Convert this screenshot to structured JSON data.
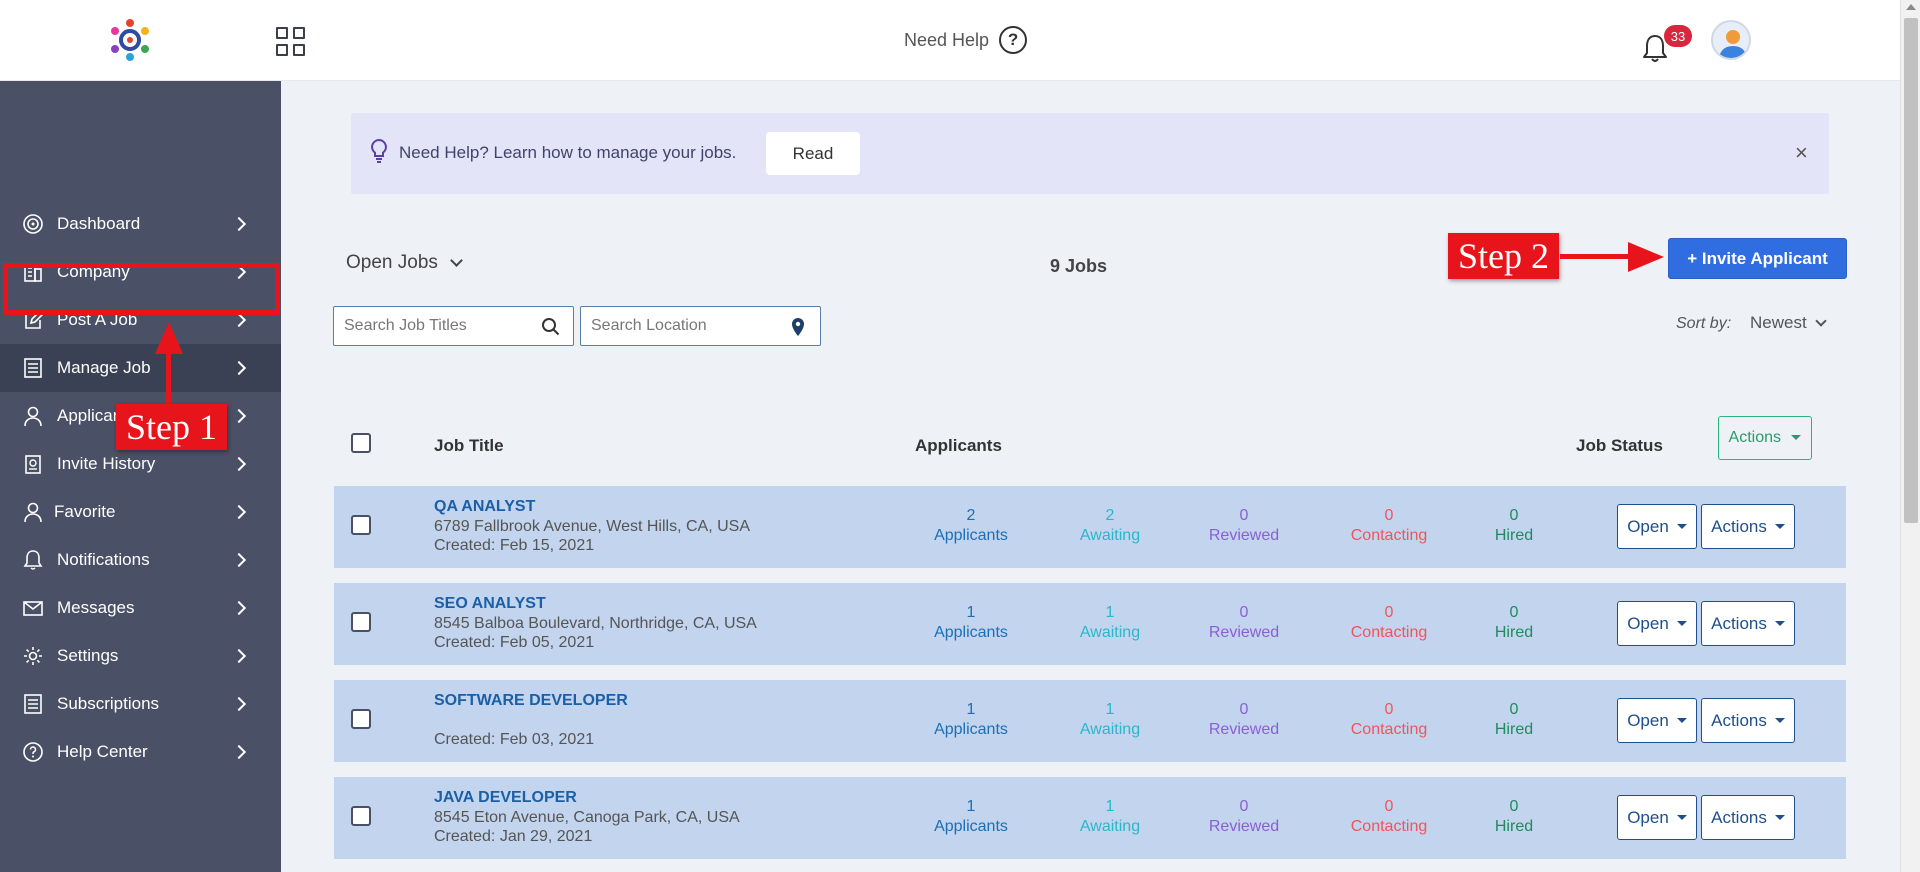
{
  "header": {
    "help_label": "Need Help",
    "help_icon": "question-circle-icon",
    "notification_count": "33"
  },
  "sidebar": {
    "items": [
      {
        "label": "Dashboard",
        "icon": "target-icon"
      },
      {
        "label": "Company",
        "icon": "building-icon"
      },
      {
        "label": "Post A Job",
        "icon": "edit-icon"
      },
      {
        "label": "Manage Job",
        "icon": "list-icon"
      },
      {
        "label": "Applicants",
        "icon": "user-icon"
      },
      {
        "label": "Invite History",
        "icon": "clipboard-icon"
      },
      {
        "label": "Favorite",
        "icon": "user-icon"
      },
      {
        "label": "Notifications",
        "icon": "bell-icon"
      },
      {
        "label": "Messages",
        "icon": "mail-icon"
      },
      {
        "label": "Settings",
        "icon": "gear-icon"
      },
      {
        "label": "Subscriptions",
        "icon": "list-icon"
      },
      {
        "label": "Help Center",
        "icon": "question-circle-icon"
      }
    ],
    "active_item": "Manage Job"
  },
  "annotations": {
    "step1": "Step 1",
    "step2": "Step 2",
    "color": "#e8141b"
  },
  "banner": {
    "text": "Need Help? Learn how to manage your jobs.",
    "read_label": "Read",
    "close_label": "×"
  },
  "toolbar": {
    "filter_label": "Open Jobs",
    "jobs_count": "9 Jobs",
    "invite_label": "+ Invite Applicant",
    "search_title_placeholder": "Search Job Titles",
    "search_location_placeholder": "Search Location",
    "sort_label": "Sort by:",
    "sort_value": "Newest"
  },
  "table": {
    "headers": {
      "title": "Job Title",
      "applicants": "Applicants",
      "status": "Job Status",
      "actions": "Actions"
    },
    "rows": [
      {
        "title": "QA ANALYST",
        "address": "6789 Fallbrook Avenue, West Hills, CA, USA",
        "created": "Created: Feb 15, 2021",
        "applicants": "2",
        "awaiting": "2",
        "reviewed": "0",
        "contacting": "0",
        "hired": "0"
      },
      {
        "title": "SEO ANALYST",
        "address": "8545 Balboa Boulevard, Northridge, CA, USA",
        "created": "Created: Feb 05, 2021",
        "applicants": "1",
        "awaiting": "1",
        "reviewed": "0",
        "contacting": "0",
        "hired": "0"
      },
      {
        "title": "SOFTWARE DEVELOPER",
        "address": "",
        "created": "Created: Feb 03, 2021",
        "applicants": "1",
        "awaiting": "1",
        "reviewed": "0",
        "contacting": "0",
        "hired": "0"
      },
      {
        "title": "JAVA DEVELOPER",
        "address": "8545 Eton Avenue, Canoga Park, CA, USA",
        "created": "Created: Jan 29, 2021",
        "applicants": "1",
        "awaiting": "1",
        "reviewed": "0",
        "contacting": "0",
        "hired": "0"
      }
    ],
    "stat_labels": {
      "applicants": "Applicants",
      "awaiting": "Awaiting",
      "reviewed": "Reviewed",
      "contacting": "Contacting",
      "hired": "Hired"
    },
    "open_label": "Open",
    "actions_label": "Actions"
  },
  "colors": {
    "sidebar_bg": "#4a5065",
    "primary_button": "#2f6de0",
    "row_bg": "#c2d4ee",
    "banner_bg": "#e3e4f7"
  }
}
